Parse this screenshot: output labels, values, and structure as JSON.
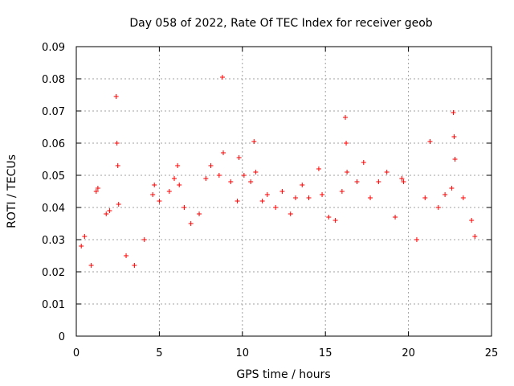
{
  "chart_data": {
    "type": "scatter",
    "title": "Day 058 of 2022, Rate Of TEC Index for receiver geob",
    "xlabel": "GPS time / hours",
    "ylabel": "ROTI / TECUs",
    "xlim": [
      0,
      25
    ],
    "ylim": [
      0,
      0.09
    ],
    "xticks": [
      0,
      5,
      10,
      15,
      20,
      25
    ],
    "yticks": [
      0,
      0.01,
      0.02,
      0.03,
      0.04,
      0.05,
      0.06,
      0.07,
      0.08,
      0.09
    ],
    "xtick_labels": [
      "0",
      "5",
      "10",
      "15",
      "20",
      "25"
    ],
    "ytick_labels": [
      "0",
      "0.01",
      "0.02",
      "0.03",
      "0.04",
      "0.05",
      "0.06",
      "0.07",
      "0.08",
      "0.09"
    ],
    "grid": true,
    "marker": "+",
    "color": "#ff0000",
    "series": [
      {
        "name": "ROTI",
        "points": [
          [
            0.3,
            0.028
          ],
          [
            0.5,
            0.031
          ],
          [
            0.9,
            0.022
          ],
          [
            1.2,
            0.045
          ],
          [
            1.3,
            0.046
          ],
          [
            1.8,
            0.038
          ],
          [
            2.0,
            0.039
          ],
          [
            2.4,
            0.0745
          ],
          [
            2.45,
            0.06
          ],
          [
            2.5,
            0.053
          ],
          [
            2.55,
            0.041
          ],
          [
            3.0,
            0.025
          ],
          [
            3.5,
            0.022
          ],
          [
            4.1,
            0.03
          ],
          [
            4.6,
            0.044
          ],
          [
            4.7,
            0.047
          ],
          [
            5.0,
            0.042
          ],
          [
            5.6,
            0.045
          ],
          [
            5.9,
            0.049
          ],
          [
            6.1,
            0.053
          ],
          [
            6.2,
            0.047
          ],
          [
            6.5,
            0.04
          ],
          [
            6.9,
            0.035
          ],
          [
            7.4,
            0.038
          ],
          [
            7.8,
            0.049
          ],
          [
            8.1,
            0.053
          ],
          [
            8.6,
            0.05
          ],
          [
            8.8,
            0.0805
          ],
          [
            8.85,
            0.057
          ],
          [
            9.3,
            0.048
          ],
          [
            9.7,
            0.042
          ],
          [
            9.8,
            0.0555
          ],
          [
            10.1,
            0.05
          ],
          [
            10.5,
            0.048
          ],
          [
            10.7,
            0.0605
          ],
          [
            10.8,
            0.051
          ],
          [
            11.2,
            0.042
          ],
          [
            11.5,
            0.044
          ],
          [
            12.0,
            0.04
          ],
          [
            12.4,
            0.045
          ],
          [
            12.9,
            0.038
          ],
          [
            13.2,
            0.043
          ],
          [
            13.6,
            0.047
          ],
          [
            14.0,
            0.043
          ],
          [
            14.6,
            0.052
          ],
          [
            14.8,
            0.044
          ],
          [
            15.2,
            0.037
          ],
          [
            15.6,
            0.036
          ],
          [
            16.0,
            0.045
          ],
          [
            16.2,
            0.068
          ],
          [
            16.25,
            0.06
          ],
          [
            16.3,
            0.051
          ],
          [
            16.9,
            0.048
          ],
          [
            17.3,
            0.054
          ],
          [
            17.7,
            0.043
          ],
          [
            18.2,
            0.048
          ],
          [
            18.7,
            0.051
          ],
          [
            19.2,
            0.037
          ],
          [
            19.6,
            0.049
          ],
          [
            19.7,
            0.048
          ],
          [
            20.5,
            0.03
          ],
          [
            21.0,
            0.043
          ],
          [
            21.3,
            0.0605
          ],
          [
            21.8,
            0.04
          ],
          [
            22.2,
            0.044
          ],
          [
            22.6,
            0.046
          ],
          [
            22.7,
            0.0695
          ],
          [
            22.75,
            0.062
          ],
          [
            22.8,
            0.055
          ],
          [
            23.3,
            0.043
          ],
          [
            23.8,
            0.036
          ],
          [
            24.0,
            0.031
          ]
        ]
      }
    ]
  }
}
